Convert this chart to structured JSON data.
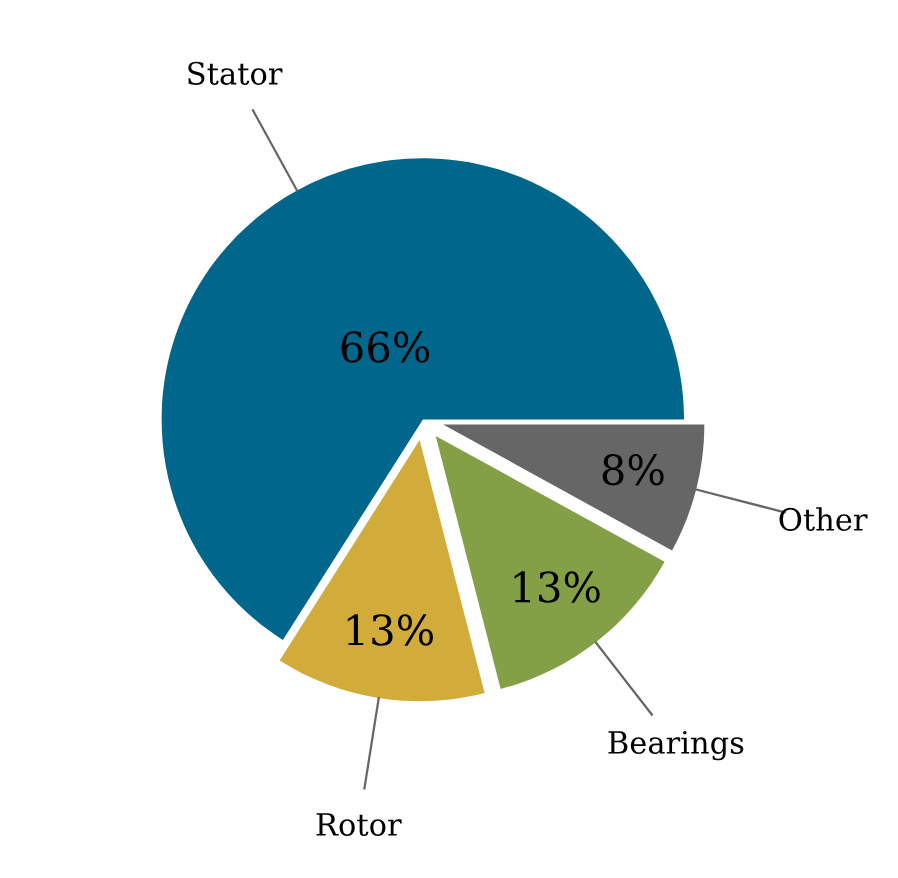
{
  "chart_data": {
    "type": "pie",
    "categories": [
      "Stator",
      "Rotor",
      "Bearings",
      "Other"
    ],
    "values": [
      66,
      13,
      13,
      8
    ],
    "colors": [
      "#00668c",
      "#d2ac3a",
      "#84a046",
      "#666666"
    ],
    "value_labels": [
      "66%",
      "13%",
      "13%",
      "8%"
    ],
    "legend": false
  }
}
